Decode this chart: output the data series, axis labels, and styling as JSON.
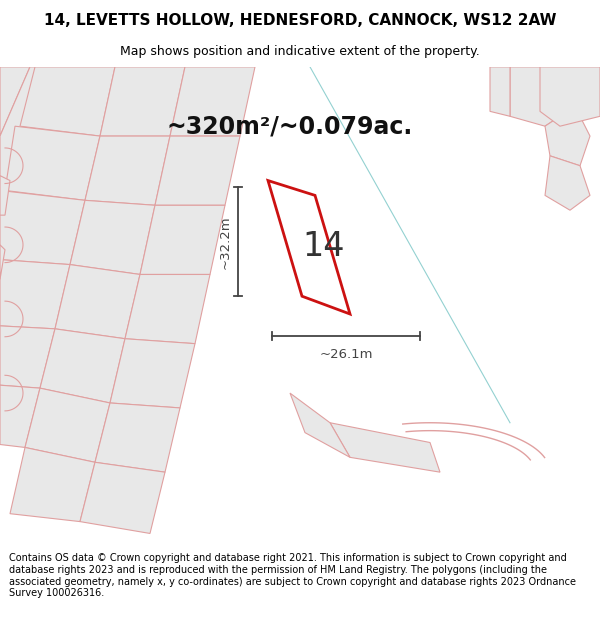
{
  "title_line1": "14, LEVETTS HOLLOW, HEDNESFORD, CANNOCK, WS12 2AW",
  "title_line2": "Map shows position and indicative extent of the property.",
  "area_text": "~320m²/~0.079ac.",
  "label_number": "14",
  "dim_width": "~26.1m",
  "dim_height": "~32.2m",
  "footer_text": "Contains OS data © Crown copyright and database right 2021. This information is subject to Crown copyright and database rights 2023 and is reproduced with the permission of HM Land Registry. The polygons (including the associated geometry, namely x, y co-ordinates) are subject to Crown copyright and database rights 2023 Ordnance Survey 100026316.",
  "map_bg": "#ffffff",
  "plot_fill": "#e8e8e8",
  "plot_edge": "#e0a0a0",
  "highlight_stroke": "#cc1111",
  "dim_color": "#444444",
  "cyan_line": "#88cccc",
  "title_fontsize": 11,
  "subtitle_fontsize": 9,
  "area_fontsize": 17,
  "label_fontsize": 24,
  "dim_fontsize": 9.5,
  "footer_fontsize": 7
}
